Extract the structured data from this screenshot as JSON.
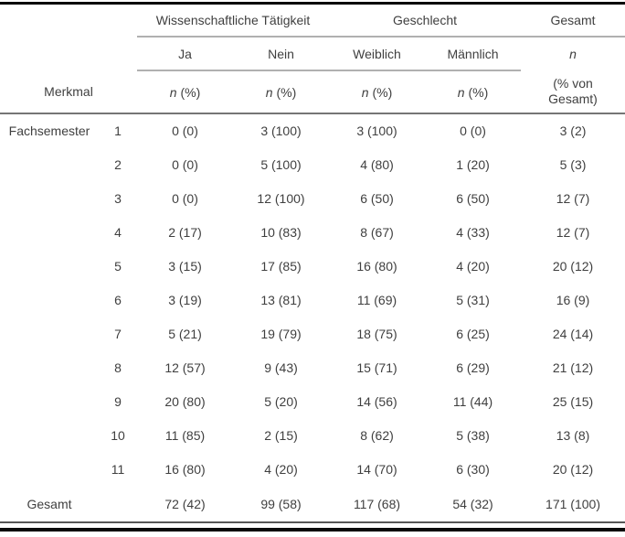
{
  "table": {
    "spanner": {
      "science": "Wissenschaftliche Tätigkeit",
      "gender": "Geschlecht",
      "total": "Gesamt"
    },
    "subheader": {
      "yes": "Ja",
      "no": "Nein",
      "female": "Weiblich",
      "male": "Männlich",
      "n": "n"
    },
    "measure": {
      "label": "Merkmal",
      "n": "n",
      "pct": " (%)",
      "total_note": "(% von Gesamt)"
    },
    "row_group_label": "Fachsemester",
    "rows": [
      {
        "merkmal": "Fachsemester",
        "sub": "1",
        "values": [
          "0 (0)",
          "3 (100)",
          "3 (100)",
          "0 (0)",
          "3 (2)"
        ]
      },
      {
        "merkmal": "",
        "sub": "2",
        "values": [
          "0 (0)",
          "5 (100)",
          "4 (80)",
          "1 (20)",
          "5 (3)"
        ]
      },
      {
        "merkmal": "",
        "sub": "3",
        "values": [
          "0 (0)",
          "12 (100)",
          "6 (50)",
          "6 (50)",
          "12 (7)"
        ]
      },
      {
        "merkmal": "",
        "sub": "4",
        "values": [
          "2 (17)",
          "10 (83)",
          "8 (67)",
          "4 (33)",
          "12 (7)"
        ]
      },
      {
        "merkmal": "",
        "sub": "5",
        "values": [
          "3 (15)",
          "17 (85)",
          "16 (80)",
          "4 (20)",
          "20 (12)"
        ]
      },
      {
        "merkmal": "",
        "sub": "6",
        "values": [
          "3 (19)",
          "13 (81)",
          "11 (69)",
          "5 (31)",
          "16 (9)"
        ]
      },
      {
        "merkmal": "",
        "sub": "7",
        "values": [
          "5 (21)",
          "19 (79)",
          "18 (75)",
          "6 (25)",
          "24 (14)"
        ]
      },
      {
        "merkmal": "",
        "sub": "8",
        "values": [
          "12 (57)",
          "9 (43)",
          "15 (71)",
          "6 (29)",
          "21 (12)"
        ]
      },
      {
        "merkmal": "",
        "sub": "9",
        "values": [
          "20 (80)",
          "5 (20)",
          "14 (56)",
          "11 (44)",
          "25 (15)"
        ]
      },
      {
        "merkmal": "",
        "sub": "10",
        "values": [
          "11 (85)",
          "2 (15)",
          "8 (62)",
          "5 (38)",
          "13 (8)"
        ]
      },
      {
        "merkmal": "",
        "sub": "11",
        "values": [
          "16 (80)",
          "4 (20)",
          "14 (70)",
          "6 (30)",
          "20 (12)"
        ]
      },
      {
        "merkmal": "Gesamt",
        "sub": "",
        "values": [
          "72 (42)",
          "99 (58)",
          "117 (68)",
          "54 (32)",
          "171 (100)"
        ],
        "is_total": true
      }
    ]
  },
  "colors": {
    "text": "#3f3f3f",
    "frame": "#0a0a0a",
    "rule_light": "#b0b0b0",
    "rule_medium": "#757575",
    "background": "#ffffff"
  }
}
